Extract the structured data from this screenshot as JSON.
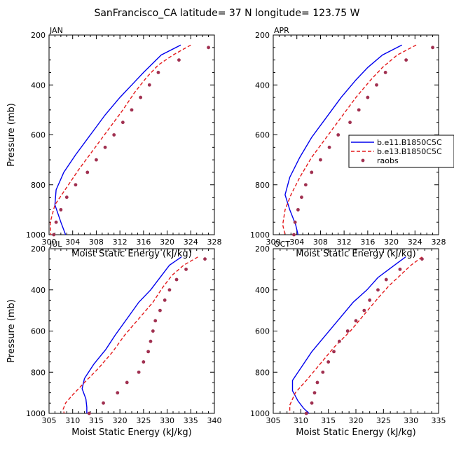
{
  "figure": {
    "title": "SanFrancisco_CA  latitude= 37 N longitude= 123.75 W"
  },
  "legend": {
    "position": "right of APR panel",
    "entries": [
      {
        "label": "b.e11.B1850C5C",
        "style": "solid-line",
        "color": "#0000ee"
      },
      {
        "label": "b.e13.B1850C5C",
        "style": "dashed-line",
        "color": "#e41a1c"
      },
      {
        "label": "raobs",
        "style": "dots",
        "color": "#a03050"
      }
    ]
  },
  "chart_data": [
    {
      "type": "line",
      "title": "JAN",
      "xlabel": "Moist Static Energy (kJ/kg)",
      "ylabel": "Pressure (mb)",
      "xlim": [
        300,
        328
      ],
      "xticks": [
        300,
        304,
        308,
        312,
        316,
        320,
        324,
        328
      ],
      "ylim": [
        1000,
        200
      ],
      "yticks": [
        200,
        400,
        600,
        800,
        1000
      ],
      "series": [
        {
          "name": "b.e11.B1850C5C",
          "x": [
            322.3,
            319.0,
            316.0,
            314.0,
            312.0,
            309.5,
            307.0,
            304.5,
            302.5,
            301.2,
            301.0,
            302.0,
            302.8
          ],
          "pressure": [
            240,
            280,
            350,
            400,
            450,
            520,
            600,
            680,
            750,
            820,
            880,
            950,
            1000
          ]
        },
        {
          "name": "b.e13.B1850C5C",
          "x": [
            324.0,
            321.0,
            318.5,
            316.5,
            314.5,
            312.5,
            310.0,
            307.5,
            305.0,
            303.0,
            301.0,
            300.2,
            300.3
          ],
          "pressure": [
            240,
            280,
            320,
            370,
            430,
            500,
            580,
            660,
            740,
            810,
            880,
            950,
            1000
          ]
        },
        {
          "name": "raobs",
          "x": [
            327.0,
            322.0,
            318.5,
            317.0,
            315.5,
            314.0,
            312.5,
            311.0,
            309.5,
            308.0,
            306.5,
            304.5,
            303.0,
            302.0,
            301.2,
            300.8
          ],
          "pressure": [
            250,
            300,
            350,
            400,
            450,
            500,
            550,
            600,
            650,
            700,
            750,
            800,
            850,
            900,
            950,
            1000
          ]
        }
      ]
    },
    {
      "type": "line",
      "title": "APR",
      "xlabel": "Moist Static Energy (kJ/kg)",
      "ylabel": "Pressure (mb)",
      "xlim": [
        300,
        328
      ],
      "xticks": [
        300,
        304,
        308,
        312,
        316,
        320,
        324,
        328
      ],
      "ylim": [
        1000,
        200
      ],
      "yticks": [
        200,
        400,
        600,
        800,
        1000
      ],
      "series": [
        {
          "name": "b.e11.B1850C5C",
          "x": [
            321.8,
            318.5,
            316.0,
            314.0,
            311.5,
            309.0,
            306.5,
            304.5,
            302.8,
            302.0,
            302.8,
            303.8,
            304.2
          ],
          "pressure": [
            240,
            280,
            330,
            380,
            450,
            530,
            610,
            690,
            770,
            840,
            900,
            960,
            1000
          ]
        },
        {
          "name": "b.e13.B1850C5C",
          "x": [
            324.2,
            321.0,
            318.5,
            316.5,
            314.0,
            311.5,
            309.0,
            306.5,
            304.5,
            303.0,
            302.0,
            301.6,
            302.0
          ],
          "pressure": [
            240,
            280,
            330,
            380,
            450,
            530,
            610,
            690,
            770,
            840,
            900,
            960,
            1000
          ]
        },
        {
          "name": "raobs",
          "x": [
            327.0,
            322.5,
            319.0,
            317.5,
            316.0,
            314.5,
            313.0,
            311.0,
            309.5,
            308.0,
            306.5,
            305.5,
            304.8,
            304.2,
            303.7,
            303.5
          ],
          "pressure": [
            250,
            300,
            350,
            400,
            450,
            500,
            550,
            600,
            650,
            700,
            750,
            800,
            850,
            900,
            950,
            1000
          ]
        }
      ]
    },
    {
      "type": "line",
      "title": "JUL",
      "xlabel": "Moist Static Energy (kJ/kg)",
      "ylabel": "Pressure (mb)",
      "xlim": [
        305,
        340
      ],
      "xticks": [
        305,
        310,
        315,
        320,
        325,
        330,
        335,
        340
      ],
      "ylim": [
        1000,
        200
      ],
      "yticks": [
        200,
        400,
        600,
        800,
        1000
      ],
      "series": [
        {
          "name": "b.e11.B1850C5C",
          "x": [
            333.0,
            330.5,
            328.5,
            326.5,
            324.0,
            321.5,
            319.0,
            317.0,
            314.5,
            312.5,
            312.0,
            312.8,
            313.0,
            313.0
          ],
          "pressure": [
            240,
            280,
            340,
            400,
            460,
            540,
            620,
            690,
            760,
            830,
            880,
            930,
            970,
            1000
          ]
        },
        {
          "name": "b.e13.B1850C5C",
          "x": [
            336.5,
            333.5,
            331.0,
            329.0,
            327.0,
            324.0,
            321.0,
            318.5,
            315.5,
            312.5,
            310.0,
            308.5,
            308.0,
            308.2
          ],
          "pressure": [
            240,
            280,
            330,
            390,
            460,
            540,
            620,
            700,
            780,
            850,
            910,
            950,
            980,
            1000
          ]
        },
        {
          "name": "raobs",
          "x": [
            338.0,
            334.0,
            332.0,
            330.5,
            329.5,
            328.5,
            327.5,
            327.0,
            326.5,
            326.0,
            325.0,
            324.0,
            321.5,
            319.5,
            316.5,
            313.5
          ],
          "pressure": [
            250,
            300,
            350,
            400,
            450,
            500,
            550,
            600,
            650,
            700,
            750,
            800,
            850,
            900,
            950,
            1000
          ]
        }
      ]
    },
    {
      "type": "line",
      "title": "OCT",
      "xlabel": "Moist Static Energy (kJ/kg)",
      "ylabel": "Pressure (mb)",
      "xlim": [
        305,
        335
      ],
      "xticks": [
        305,
        310,
        315,
        320,
        325,
        330,
        335
      ],
      "ylim": [
        1000,
        200
      ],
      "yticks": [
        200,
        400,
        600,
        800,
        1000
      ],
      "series": [
        {
          "name": "b.e11.B1850C5C",
          "x": [
            329.0,
            326.5,
            324.0,
            322.0,
            319.5,
            317.0,
            314.5,
            312.0,
            310.0,
            308.5,
            308.5,
            309.5,
            310.5,
            311.5
          ],
          "pressure": [
            240,
            290,
            340,
            400,
            460,
            540,
            620,
            700,
            780,
            840,
            890,
            940,
            975,
            1000
          ]
        },
        {
          "name": "b.e13.B1850C5C",
          "x": [
            332.0,
            330.0,
            328.0,
            326.0,
            324.0,
            321.5,
            319.0,
            316.0,
            313.5,
            311.0,
            309.0,
            308.0,
            308.0
          ],
          "pressure": [
            240,
            280,
            330,
            380,
            440,
            520,
            600,
            680,
            760,
            840,
            900,
            960,
            1000
          ]
        },
        {
          "name": "raobs",
          "x": [
            332.0,
            328.0,
            325.5,
            324.0,
            322.5,
            321.5,
            320.0,
            318.5,
            317.0,
            316.0,
            315.0,
            314.0,
            313.0,
            312.5,
            312.0,
            311.0
          ],
          "pressure": [
            250,
            300,
            350,
            400,
            450,
            500,
            550,
            600,
            650,
            700,
            750,
            800,
            850,
            900,
            950,
            1000
          ]
        }
      ]
    }
  ]
}
